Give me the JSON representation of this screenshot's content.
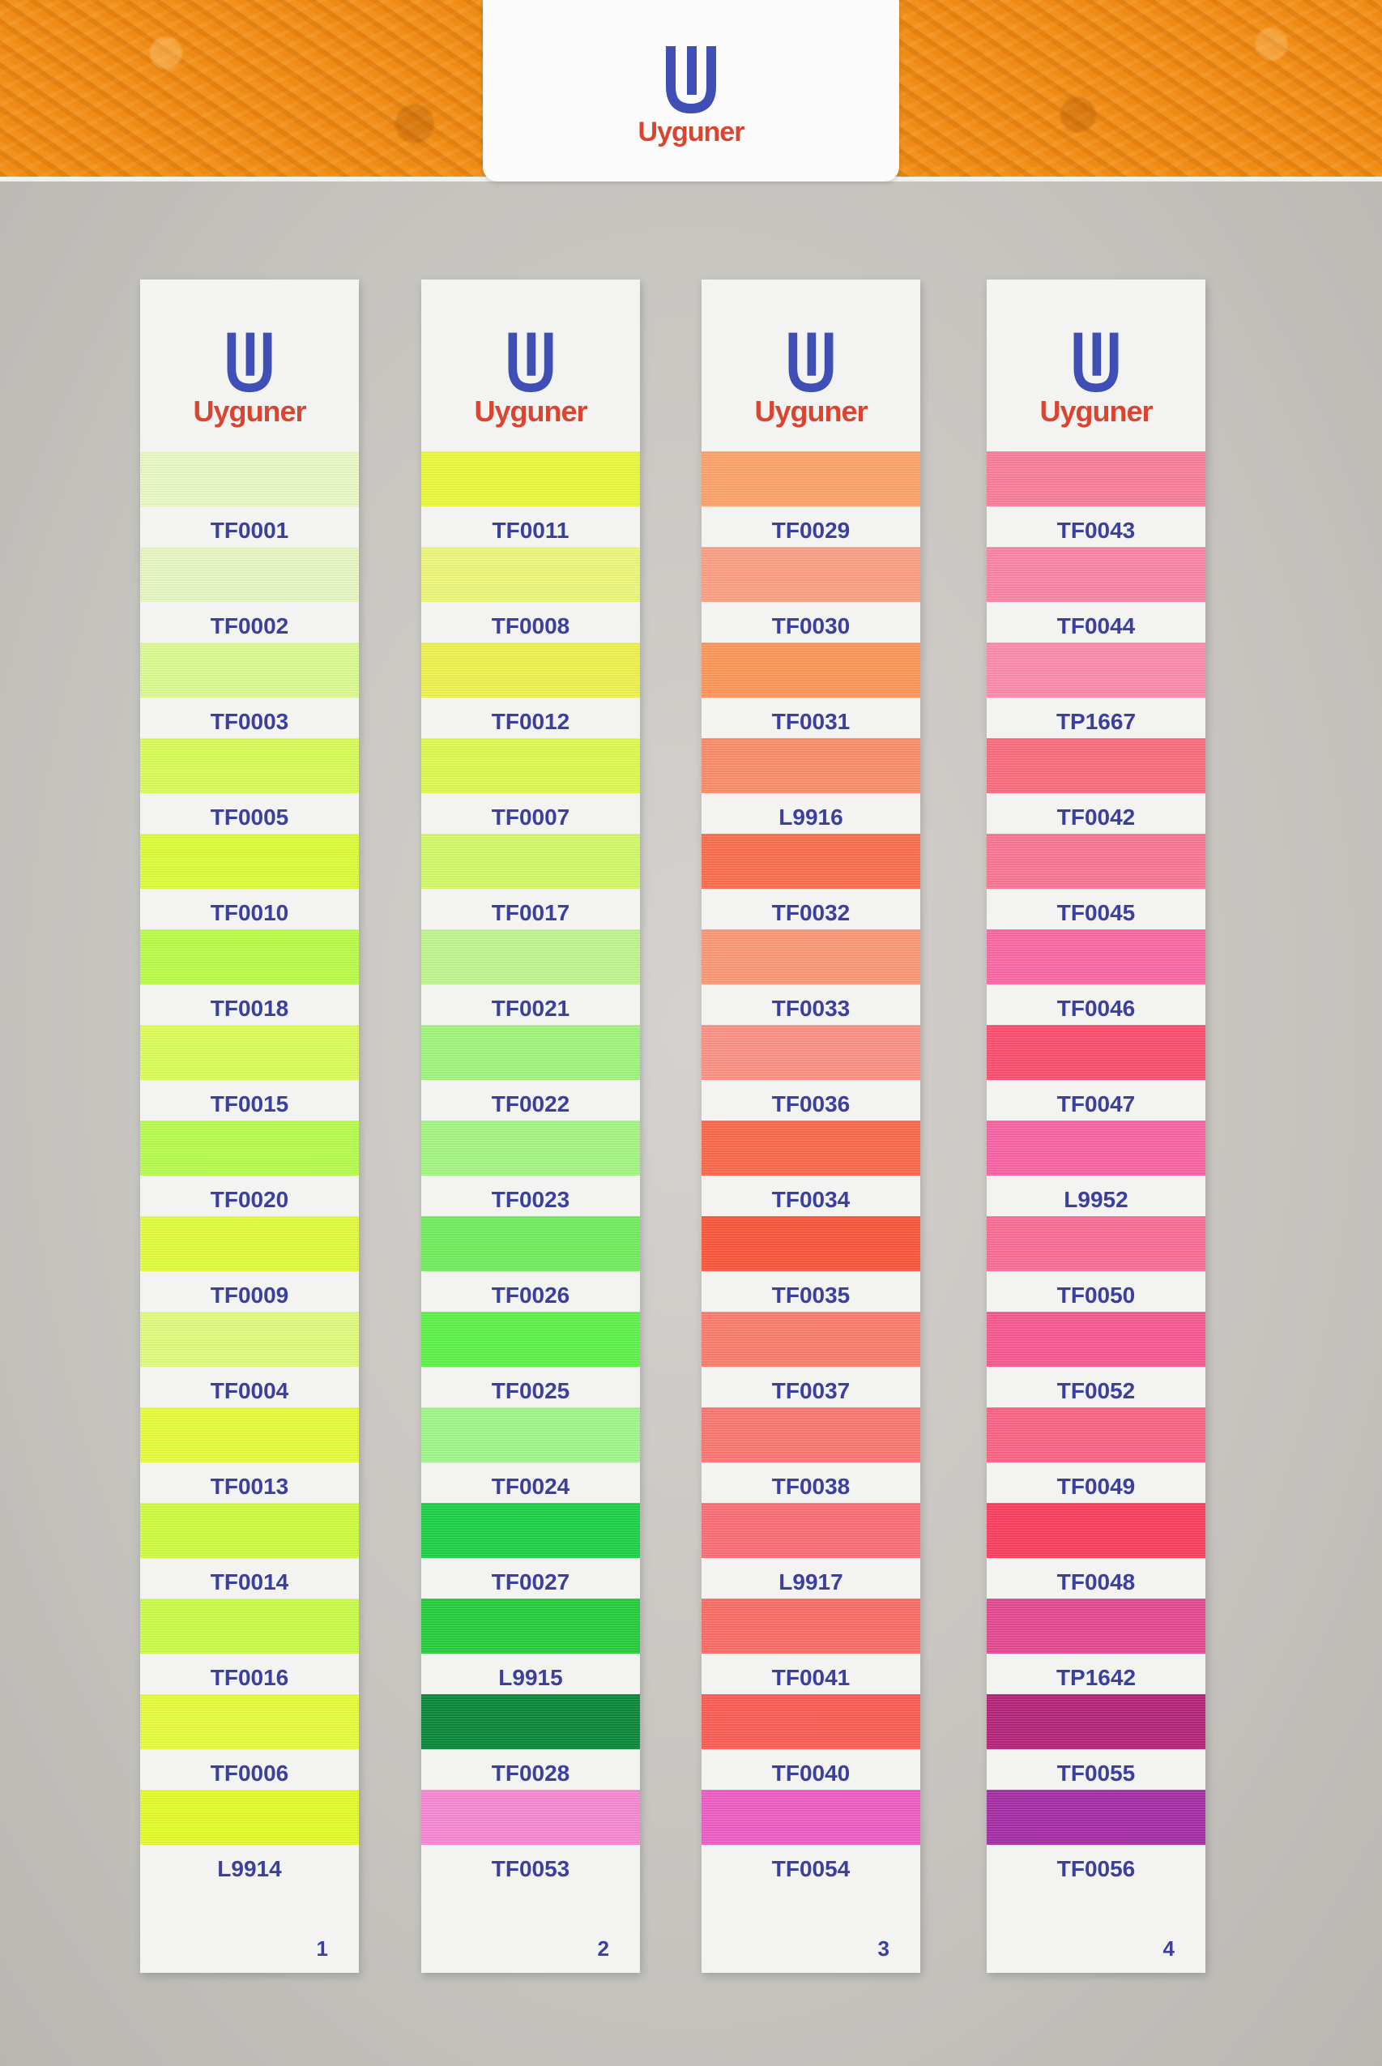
{
  "brand": {
    "name": "Uyguner",
    "mark_color": "#3f4fb5",
    "wordmark_color": "#d94530"
  },
  "cards": [
    {
      "number": "1",
      "swatches": [
        {
          "code": "TF0001",
          "color": "#eafbc6"
        },
        {
          "code": "TF0002",
          "color": "#e9f8c4"
        },
        {
          "code": "TF0003",
          "color": "#ddfd93"
        },
        {
          "code": "TF0005",
          "color": "#dbff5a"
        },
        {
          "code": "TF0010",
          "color": "#e0ff3a"
        },
        {
          "code": "TF0018",
          "color": "#bcff4a"
        },
        {
          "code": "TF0015",
          "color": "#deff5a"
        },
        {
          "code": "TF0020",
          "color": "#b8ff50"
        },
        {
          "code": "TF0009",
          "color": "#e3ff3e"
        },
        {
          "code": "TF0004",
          "color": "#e1fd7c"
        },
        {
          "code": "TF0013",
          "color": "#e8ff3a"
        },
        {
          "code": "TF0014",
          "color": "#d2ff40"
        },
        {
          "code": "TF0016",
          "color": "#ccff4a"
        },
        {
          "code": "TF0006",
          "color": "#e8ff3c"
        },
        {
          "code": "L9914",
          "color": "#e5ff2c"
        }
      ]
    },
    {
      "number": "2",
      "swatches": [
        {
          "code": "TF0011",
          "color": "#ecfb3c"
        },
        {
          "code": "TF0008",
          "color": "#eef97a"
        },
        {
          "code": "TF0012",
          "color": "#f0f250"
        },
        {
          "code": "TF0007",
          "color": "#e0fb52"
        },
        {
          "code": "TF0017",
          "color": "#d4fb6a"
        },
        {
          "code": "TF0021",
          "color": "#bff78f"
        },
        {
          "code": "TF0022",
          "color": "#a2f77d"
        },
        {
          "code": "TF0023",
          "color": "#a6f784"
        },
        {
          "code": "TF0026",
          "color": "#72ee5e"
        },
        {
          "code": "TF0025",
          "color": "#5ff54a"
        },
        {
          "code": "TF0024",
          "color": "#a1f98b"
        },
        {
          "code": "TF0027",
          "color": "#1ed249"
        },
        {
          "code": "L9915",
          "color": "#26cf3d"
        },
        {
          "code": "TF0028",
          "color": "#0b8a3b"
        },
        {
          "code": "TF0053",
          "color": "#f889d3"
        }
      ]
    },
    {
      "number": "3",
      "swatches": [
        {
          "code": "TF0029",
          "color": "#ffa46c"
        },
        {
          "code": "TF0030",
          "color": "#ffa184"
        },
        {
          "code": "TF0031",
          "color": "#ff9a5a"
        },
        {
          "code": "L9916",
          "color": "#ff8e6a"
        },
        {
          "code": "TF0032",
          "color": "#ff6f4f"
        },
        {
          "code": "TF0033",
          "color": "#ff9a78"
        },
        {
          "code": "TF0036",
          "color": "#ff9486"
        },
        {
          "code": "TF0034",
          "color": "#ff6a4c"
        },
        {
          "code": "TF0035",
          "color": "#ff5a3c"
        },
        {
          "code": "TF0037",
          "color": "#ff7f6e"
        },
        {
          "code": "TF0038",
          "color": "#ff7a72"
        },
        {
          "code": "L9917",
          "color": "#ff6f76"
        },
        {
          "code": "TF0041",
          "color": "#ff6e66"
        },
        {
          "code": "TF0040",
          "color": "#ff5e56"
        },
        {
          "code": "TF0054",
          "color": "#f05ec6"
        }
      ]
    },
    {
      "number": "4",
      "swatches": [
        {
          "code": "TF0043",
          "color": "#ff7f9c"
        },
        {
          "code": "TF0044",
          "color": "#ff86a6"
        },
        {
          "code": "TP1667",
          "color": "#ff8cb2"
        },
        {
          "code": "TF0042",
          "color": "#ff6e80"
        },
        {
          "code": "TF0045",
          "color": "#ff7794"
        },
        {
          "code": "TF0046",
          "color": "#ff6aa4"
        },
        {
          "code": "TF0047",
          "color": "#ff5070"
        },
        {
          "code": "L9952",
          "color": "#fa65a4"
        },
        {
          "code": "TF0050",
          "color": "#ff6e96"
        },
        {
          "code": "TF0052",
          "color": "#fb5a92"
        },
        {
          "code": "TF0049",
          "color": "#ff6686"
        },
        {
          "code": "TF0048",
          "color": "#ff3f62"
        },
        {
          "code": "TP1642",
          "color": "#e64b92"
        },
        {
          "code": "TF0055",
          "color": "#b6257c"
        },
        {
          "code": "TF0056",
          "color": "#a82fa8"
        }
      ]
    }
  ]
}
